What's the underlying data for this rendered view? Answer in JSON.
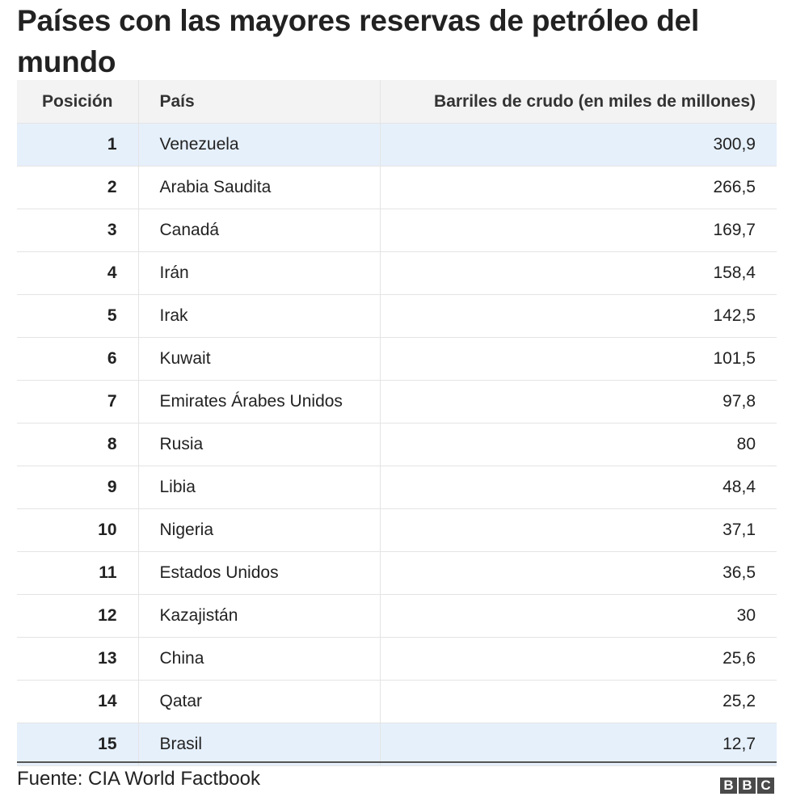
{
  "title": "Países con las mayores reservas de petróleo del mundo",
  "source": "Fuente: CIA World Factbook",
  "logo": [
    "B",
    "B",
    "C"
  ],
  "colors": {
    "highlight_row": "#e6f0fb",
    "header_bg": "#f3f3f3",
    "rule": "#555555"
  },
  "chart_data": {
    "type": "table",
    "title": "Países con las mayores reservas de petróleo del mundo",
    "columns": [
      "Posición",
      "País",
      "Barriles de crudo (en miles de millones)"
    ],
    "rows": [
      {
        "pos": "1",
        "country": "Venezuela",
        "value": "300,9",
        "highlight": true
      },
      {
        "pos": "2",
        "country": "Arabia Saudita",
        "value": "266,5",
        "highlight": false
      },
      {
        "pos": "3",
        "country": "Canadá",
        "value": "169,7",
        "highlight": false
      },
      {
        "pos": "4",
        "country": "Irán",
        "value": "158,4",
        "highlight": false
      },
      {
        "pos": "5",
        "country": "Irak",
        "value": "142,5",
        "highlight": false
      },
      {
        "pos": "6",
        "country": "Kuwait",
        "value": "101,5",
        "highlight": false
      },
      {
        "pos": "7",
        "country": "Emirates Árabes Unidos",
        "value": "97,8",
        "highlight": false
      },
      {
        "pos": "8",
        "country": "Rusia",
        "value": "80",
        "highlight": false
      },
      {
        "pos": "9",
        "country": "Libia",
        "value": "48,4",
        "highlight": false
      },
      {
        "pos": "10",
        "country": "Nigeria",
        "value": "37,1",
        "highlight": false
      },
      {
        "pos": "11",
        "country": "Estados Unidos",
        "value": "36,5",
        "highlight": false
      },
      {
        "pos": "12",
        "country": "Kazajistán",
        "value": "30",
        "highlight": false
      },
      {
        "pos": "13",
        "country": "China",
        "value": "25,6",
        "highlight": false
      },
      {
        "pos": "14",
        "country": "Qatar",
        "value": "25,2",
        "highlight": false
      },
      {
        "pos": "15",
        "country": "Brasil",
        "value": "12,7",
        "highlight": true
      }
    ]
  }
}
